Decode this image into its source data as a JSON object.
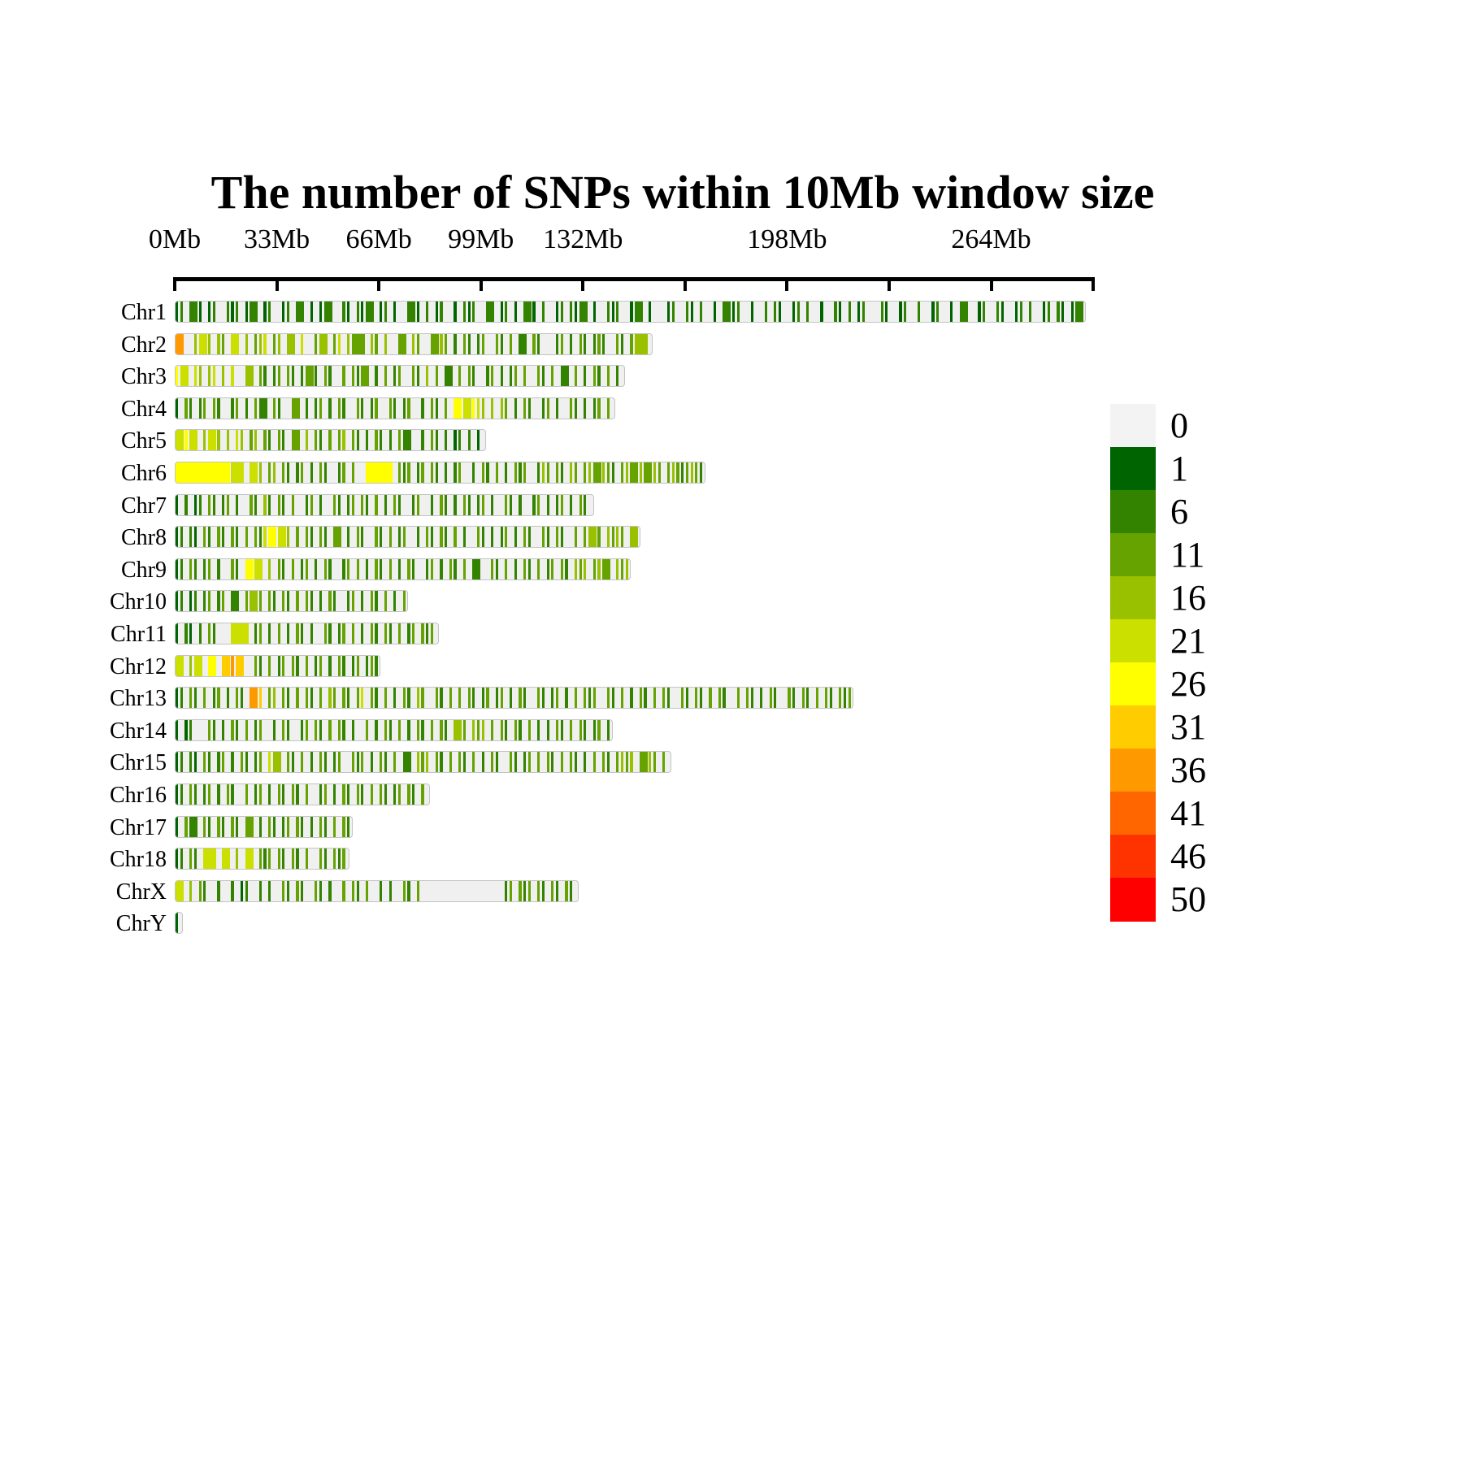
{
  "title": "The number of SNPs within 10Mb window size",
  "axis": {
    "unit": "Mb",
    "tick_interval_mb": 33,
    "max_mb": 297,
    "tick_labels": [
      {
        "text": "0Mb",
        "mb": 0
      },
      {
        "text": "33Mb",
        "mb": 33
      },
      {
        "text": "66Mb",
        "mb": 66
      },
      {
        "text": "99Mb",
        "mb": 99
      },
      {
        "text": "132Mb",
        "mb": 132
      },
      {
        "text": "198Mb",
        "mb": 198
      },
      {
        "text": "264Mb",
        "mb": 264
      }
    ]
  },
  "legend": {
    "entries": [
      {
        "label": "0",
        "value": 0,
        "color": "#f3f3f3"
      },
      {
        "label": "1",
        "value": 1,
        "color": "#006400"
      },
      {
        "label": "6",
        "value": 6,
        "color": "#338300"
      },
      {
        "label": "11",
        "value": 11,
        "color": "#66A200"
      },
      {
        "label": "16",
        "value": 16,
        "color": "#99C100"
      },
      {
        "label": "21",
        "value": 21,
        "color": "#CCE000"
      },
      {
        "label": "26",
        "value": 26,
        "color": "#FFFF00"
      },
      {
        "label": "31",
        "value": 31,
        "color": "#FFCC00"
      },
      {
        "label": "36",
        "value": 36,
        "color": "#FF9900"
      },
      {
        "label": "41",
        "value": 41,
        "color": "#FF6600"
      },
      {
        "label": "46",
        "value": 46,
        "color": "#FF3300"
      },
      {
        "label": "50",
        "value": 50,
        "color": "#FF0000"
      }
    ]
  },
  "chart_data": {
    "type": "heatmap",
    "title": "The number of SNPs within 10Mb window size",
    "window_size_mb": 10,
    "x_axis": {
      "unit": "Mb",
      "ticks": [
        0,
        33,
        66,
        99,
        132,
        165,
        198,
        231,
        264,
        297
      ]
    },
    "value_bins": [
      0,
      1,
      6,
      11,
      16,
      21,
      26,
      31,
      36,
      41,
      46,
      50
    ],
    "cell_mb": 1.5,
    "encoding": {
      ".": 0,
      "a": 1,
      "b": 6,
      "c": 11,
      "d": 16,
      "e": 21,
      "f": 26,
      "g": 31,
      "h": 36,
      "i": 41,
      "j": 46,
      "k": 50
    },
    "chromosomes": [
      {
        "name": "Chr1",
        "length_mb": 294,
        "pattern": "ab.bba.ab..bab.abb.ab..ab.bb.a.abb..ba.babb.ab.a..bba.b.ab..a.bab..bb.ab.a.bba.b..ab.babb.a..bab..abb.a...ab..ba.b..a.bbab..a..b.ba..ab.b..a..ba.b.ab...ba..ab..b..ab..a.bb..ab..ba..ab.b..ab.ba.abb.ab"
      },
      {
        "name": "Chr2",
        "length_mb": 154,
        "pattern": "hh..deed.dc.ee.d.cde.cd.dd.e..cdd.ce.dccc.dc.d..cc.dc..ccdc.b.cb.bc..cb.c.bb.cb...bc.b.cb.bcb..cb.cddd."
      },
      {
        "name": "Chr3",
        "length_mb": 145,
        "pattern": "fee.ed.de.d.e..dd.cb.bc.cb.bccb.cb..c.cbcc.b.c.bc..cb.d.c.bb.c.cb..bc.b.bc.c..cb.c.bb.c.b.cb.c.bb"
      },
      {
        "name": "Chr4",
        "length_mb": 142,
        "pattern": "a.cb.bc.cb..bc.b.cbb.cb..cc.b.bc.b.cb..cb.bc..cb.bc..b.cb.c.ffeefed.d.dc.b.cb..bc.b..cb.b.bc.cb"
      },
      {
        "name": "Chr5",
        "length_mb": 100,
        "pattern": "eefee.deed.d.ed.cd.cb.cb.cc.d.cb.c.cd.cb.b.cb.b.cbb..b.cb.b.ab.b.ab"
      },
      {
        "name": "Chr6",
        "length_mb": 171,
        "pattern": "ffffffffffffeee.eed.cd.cb.bc.b.cb..bc.c..ffffff.cbc.bc.cb.b.bc..b.cb.c.b.cbc..bdc.cb.dc.cdccdcb.cdccdccdc.cdcbcdcb"
      },
      {
        "name": "Chr7",
        "length_mb": 135,
        "pattern": "a.b.ab.cb.bc.b..cb.db.cb.c..bc.b..cb.bc.cb.c.b.cb..bc..b.cb.b.cb.bc.b..cb.b..bc.b.bc.b.cb."
      },
      {
        "name": "Chr8",
        "length_mb": 150,
        "pattern": "ab.ba.cb.cb.cb.c.cbeffeed.c.cb.cb.cc.b.cb..cb.c.bc..b.cb.cb.c.b..cb.b.bc.b.cb..cb.cb..c.cddc.dcdc.dd"
      },
      {
        "name": "Chr9",
        "length_mb": 147,
        "pattern": "ab.cb.bc.b..cb.ffee.d.cb.c.bc.b.cb..bc.c.b.cb.c.b.cb..bc.b.cb.c.bb..cb.c.b.cb.c.bc.cb.dcd.cdcc.dcd"
      },
      {
        "name": "Chr10",
        "length_mb": 75,
        "pattern": "ab.ab.bc.bc.bb.cddc.cb.cb.c.cb.b.cb..bc.b.cb.c.b.c"
      },
      {
        "name": "Chr11",
        "length_mb": 85,
        "pattern": "a.ba.b.cb...eeee.bc.b.c.b.cb.b..cb.bc.c.b.cb.cb.c.bc.cbcb"
      },
      {
        "name": "Chr12",
        "length_mb": 66,
        "pattern": "ee.dee.ff.gghgg..cb.c.bc.cb.c.bc.b.cb.bc.bcb"
      },
      {
        "name": "Chr13",
        "length_mb": 219,
        "pattern": "ab.cb.c.bc.b.cb.hhg.cd.cb.c.cb.c.dc.cb.ce.cb.c.b.cb.dc..cb.c.c.cb.bc.bc.b.cb..cb.bc.b.c.cbc..cb.c.b.cb.c.cb..cb.cb.c.cb..c.cb.b.cb..cb.cb.c.cb.cbc"
      },
      {
        "name": "Chr14",
        "length_mb": 141,
        "pattern": "a.ab...cb.b.cb.c.bc..b.cb..bc.cb.c.cb.b..c.b.cb.c.b.cb.c.cb.ddc.dcd.c.cb.cb.c.b.b.cb.c.cb.bc.b"
      },
      {
        "name": "Chr15",
        "length_mb": 160,
        "pattern": "ab.ba.cb.bc.b.cb.bc.edd.cb.c.b.cb.bc..cbc.b.cb.c.bb.dcd.cb.c.cb.c.b.cb..cb.bc.c.cb.c.cb.b.c.cb.cdcd.ccdc.cb"
      },
      {
        "name": "Chr16",
        "length_mb": 82,
        "pattern": "ab.cb.bc.b.cb..c.bc.b.cb.cb.c..bc.b.cb.cb.c.cb.bc.cb.cb"
      },
      {
        "name": "Chr17",
        "length_mb": 57,
        "pattern": "a.cbb.cb.cb.cb.cc.b.cb.bc.cb.b.cb.c.cb"
      },
      {
        "name": "Chr18",
        "length_mb": 56,
        "pattern": "ab.cb.eee.ee.d.ee.cbc.cb.cb.c..cb.cbcb"
      },
      {
        "name": "ChrX",
        "length_mb": 130,
        "pattern": "ee.d.cb..b..b.ab..b.b..cb.cb..cb.b..c.cb.c..b.b..cb.c..................bc.cbc.cb.cb.cbcb."
      },
      {
        "name": "ChrY",
        "length_mb": 2,
        "pattern": "a"
      }
    ]
  }
}
